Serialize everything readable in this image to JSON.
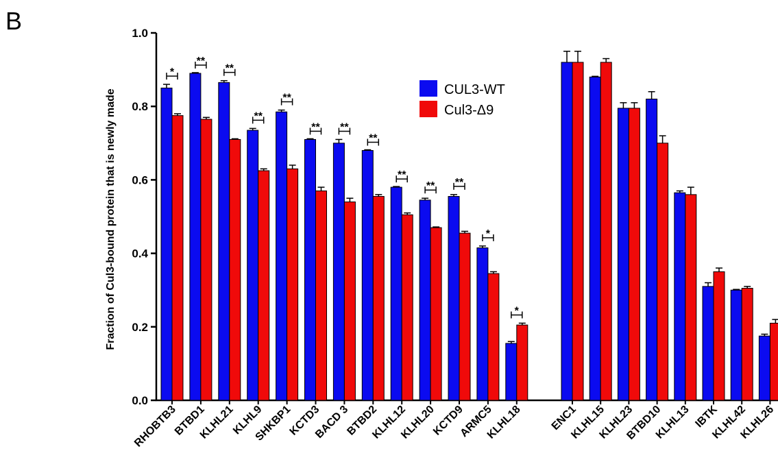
{
  "panel_letter": "B",
  "chart_data": {
    "type": "bar",
    "title": "",
    "xlabel": "",
    "ylabel": "Fraction of Cul3-bound protein that is newly made",
    "ylim": [
      0,
      1.0
    ],
    "yticks": [
      "0.0",
      "0.2",
      "0.4",
      "0.6",
      "0.8",
      "1.0"
    ],
    "grid": false,
    "legend_position": "top-center",
    "categories": [
      "RHOBTB3",
      "BTBD1",
      "KLHL21",
      "KLHL9",
      "SHKBP1",
      "KCTD3",
      "BACD 3",
      "BTBD2",
      "KLHL12",
      "KLHL20",
      "KCTD9",
      "ARMC5",
      "KLHL18",
      "ENC1",
      "KLHL15",
      "KLHL23",
      "BTBD10",
      "KLHL13",
      "IBTK",
      "KLHL42",
      "KLHL26"
    ],
    "series": [
      {
        "name": "CUL3-WT",
        "color": "#0b0bf0",
        "values": [
          0.85,
          0.89,
          0.865,
          0.735,
          0.785,
          0.71,
          0.7,
          0.68,
          0.58,
          0.545,
          0.555,
          0.415,
          0.155,
          0.92,
          0.88,
          0.795,
          0.82,
          0.565,
          0.31,
          0.3,
          0.175
        ],
        "errors": [
          0.01,
          0.0,
          0.005,
          0.005,
          0.005,
          0.0,
          0.01,
          0.0,
          0.0,
          0.005,
          0.005,
          0.005,
          0.005,
          0.03,
          0.0,
          0.015,
          0.02,
          0.005,
          0.01,
          0.0,
          0.005
        ]
      },
      {
        "name": "Cul3-Δ9",
        "color": "#f00a0a",
        "values": [
          0.775,
          0.765,
          0.71,
          0.625,
          0.63,
          0.57,
          0.54,
          0.555,
          0.505,
          0.47,
          0.455,
          0.345,
          0.205,
          0.92,
          0.92,
          0.795,
          0.7,
          0.56,
          0.35,
          0.305,
          0.21
        ],
        "errors": [
          0.005,
          0.005,
          0.0,
          0.005,
          0.01,
          0.01,
          0.01,
          0.005,
          0.005,
          0.0,
          0.005,
          0.005,
          0.005,
          0.03,
          0.01,
          0.015,
          0.02,
          0.02,
          0.01,
          0.005,
          0.01
        ]
      }
    ],
    "significance": [
      "*",
      "**",
      "**",
      "**",
      "**",
      "**",
      "**",
      "**",
      "**",
      "**",
      "**",
      "*",
      "*",
      "",
      "",
      "",
      "",
      "",
      "",
      "",
      ""
    ]
  }
}
